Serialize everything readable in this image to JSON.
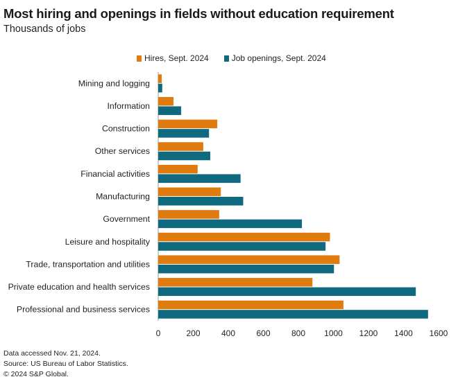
{
  "chart_data": {
    "type": "bar",
    "orientation": "horizontal",
    "title": "Most hiring and openings in fields without education requirement",
    "subtitle": "Thousands of jobs",
    "categories": [
      "Mining and logging",
      "Information",
      "Construction",
      "Other services",
      "Financial activities",
      "Manufacturing",
      "Government",
      "Leisure and hospitality",
      "Trade, transportation and utilities",
      "Private education and health services",
      "Professional and business services"
    ],
    "series": [
      {
        "name": "Hires, Sept. 2024",
        "color": "#e07b0f",
        "values": [
          20,
          87,
          337,
          257,
          225,
          357,
          348,
          980,
          1035,
          880,
          1057
        ]
      },
      {
        "name": "Job openings, Sept. 2024",
        "color": "#0f6a80",
        "values": [
          23,
          131,
          290,
          297,
          470,
          485,
          820,
          955,
          1003,
          1470,
          1540
        ]
      }
    ],
    "xlim": [
      0,
      1600
    ],
    "xticks": [
      "0",
      "200",
      "400",
      "600",
      "800",
      "1000",
      "1200",
      "1400",
      "1600"
    ],
    "xlabel": "",
    "ylabel": "",
    "legend_position": "top"
  },
  "footer": {
    "accessed": "Data accessed Nov. 21, 2024.",
    "source": "Source: US Bureau of Labor Statistics.",
    "copyright": "© 2024 S&P Global."
  }
}
